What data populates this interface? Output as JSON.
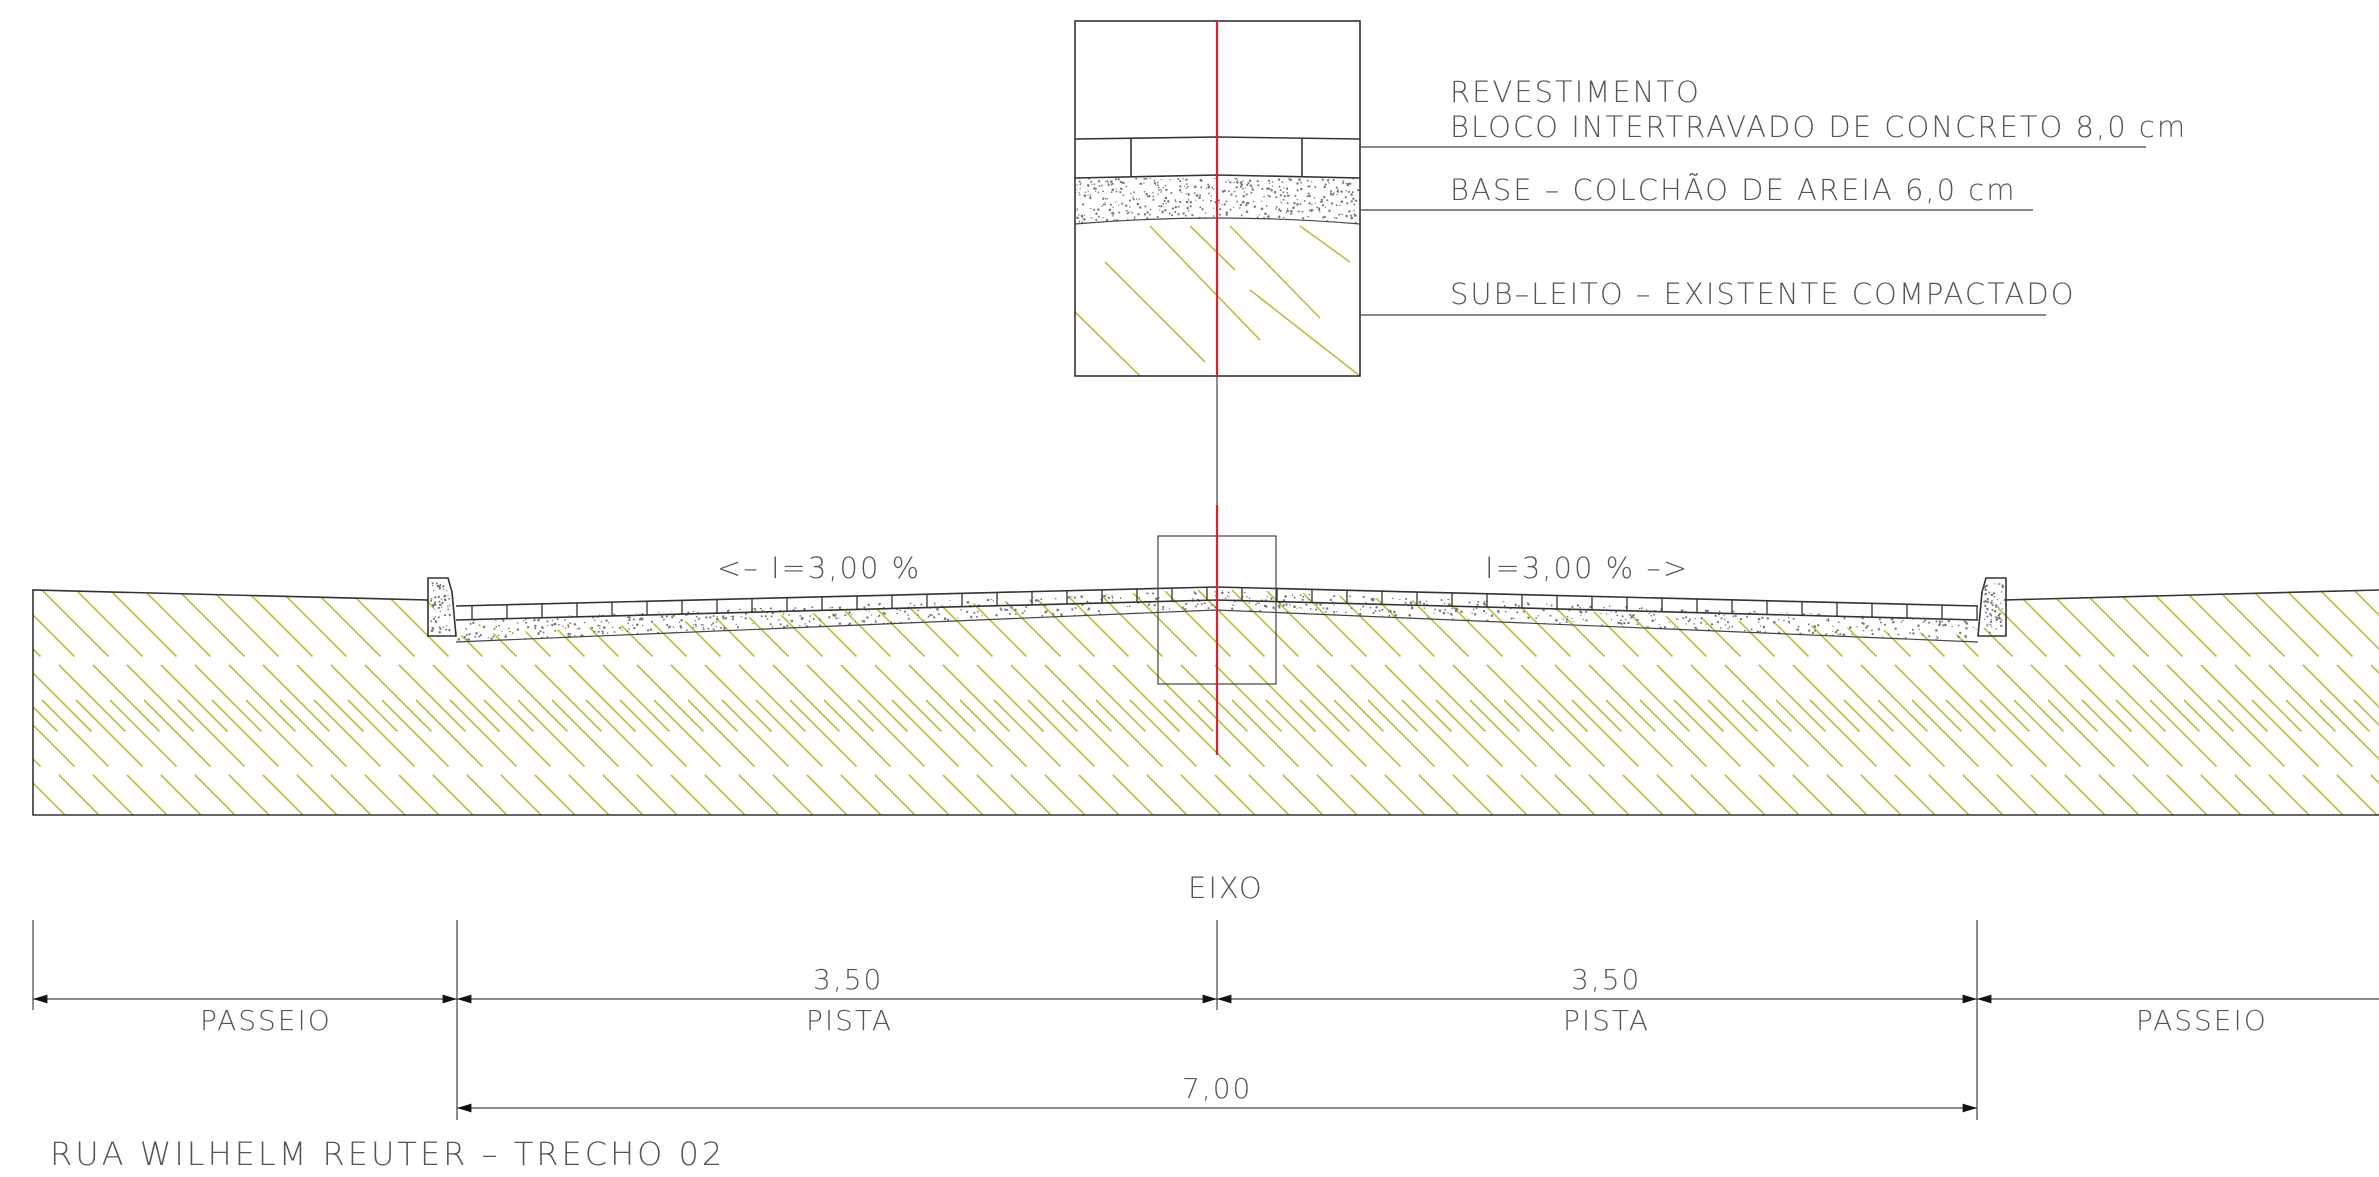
{
  "detail": {
    "layers": [
      {
        "name": "revestimento",
        "lines": [
          "REVESTIMENTO",
          "BLOCO INTERTRAVADO DE CONCRETO 8,0 cm"
        ]
      },
      {
        "name": "base",
        "lines": [
          "BASE – COLCHÃO DE AREIA 6,0 cm"
        ]
      },
      {
        "name": "subleito",
        "lines": [
          "SUB–LEITO – EXISTENTE COMPACTADO"
        ]
      }
    ]
  },
  "section": {
    "slope_left": "<– I=3,00 %",
    "slope_right": "I=3,00 % –>",
    "axis_label": "EIXO"
  },
  "dimensions": {
    "passeio_left": "PASSEIO",
    "pista_left_value": "3,50",
    "pista_left_label": "PISTA",
    "pista_right_value": "3,50",
    "pista_right_label": "PISTA",
    "passeio_right": "PASSEIO",
    "total_value": "7,00"
  },
  "title": "RUA WILHELM REUTER – TRECHO 02",
  "colors": {
    "axis": "#e0202e",
    "hatch": "#b8bf3f",
    "text": "#555555"
  }
}
